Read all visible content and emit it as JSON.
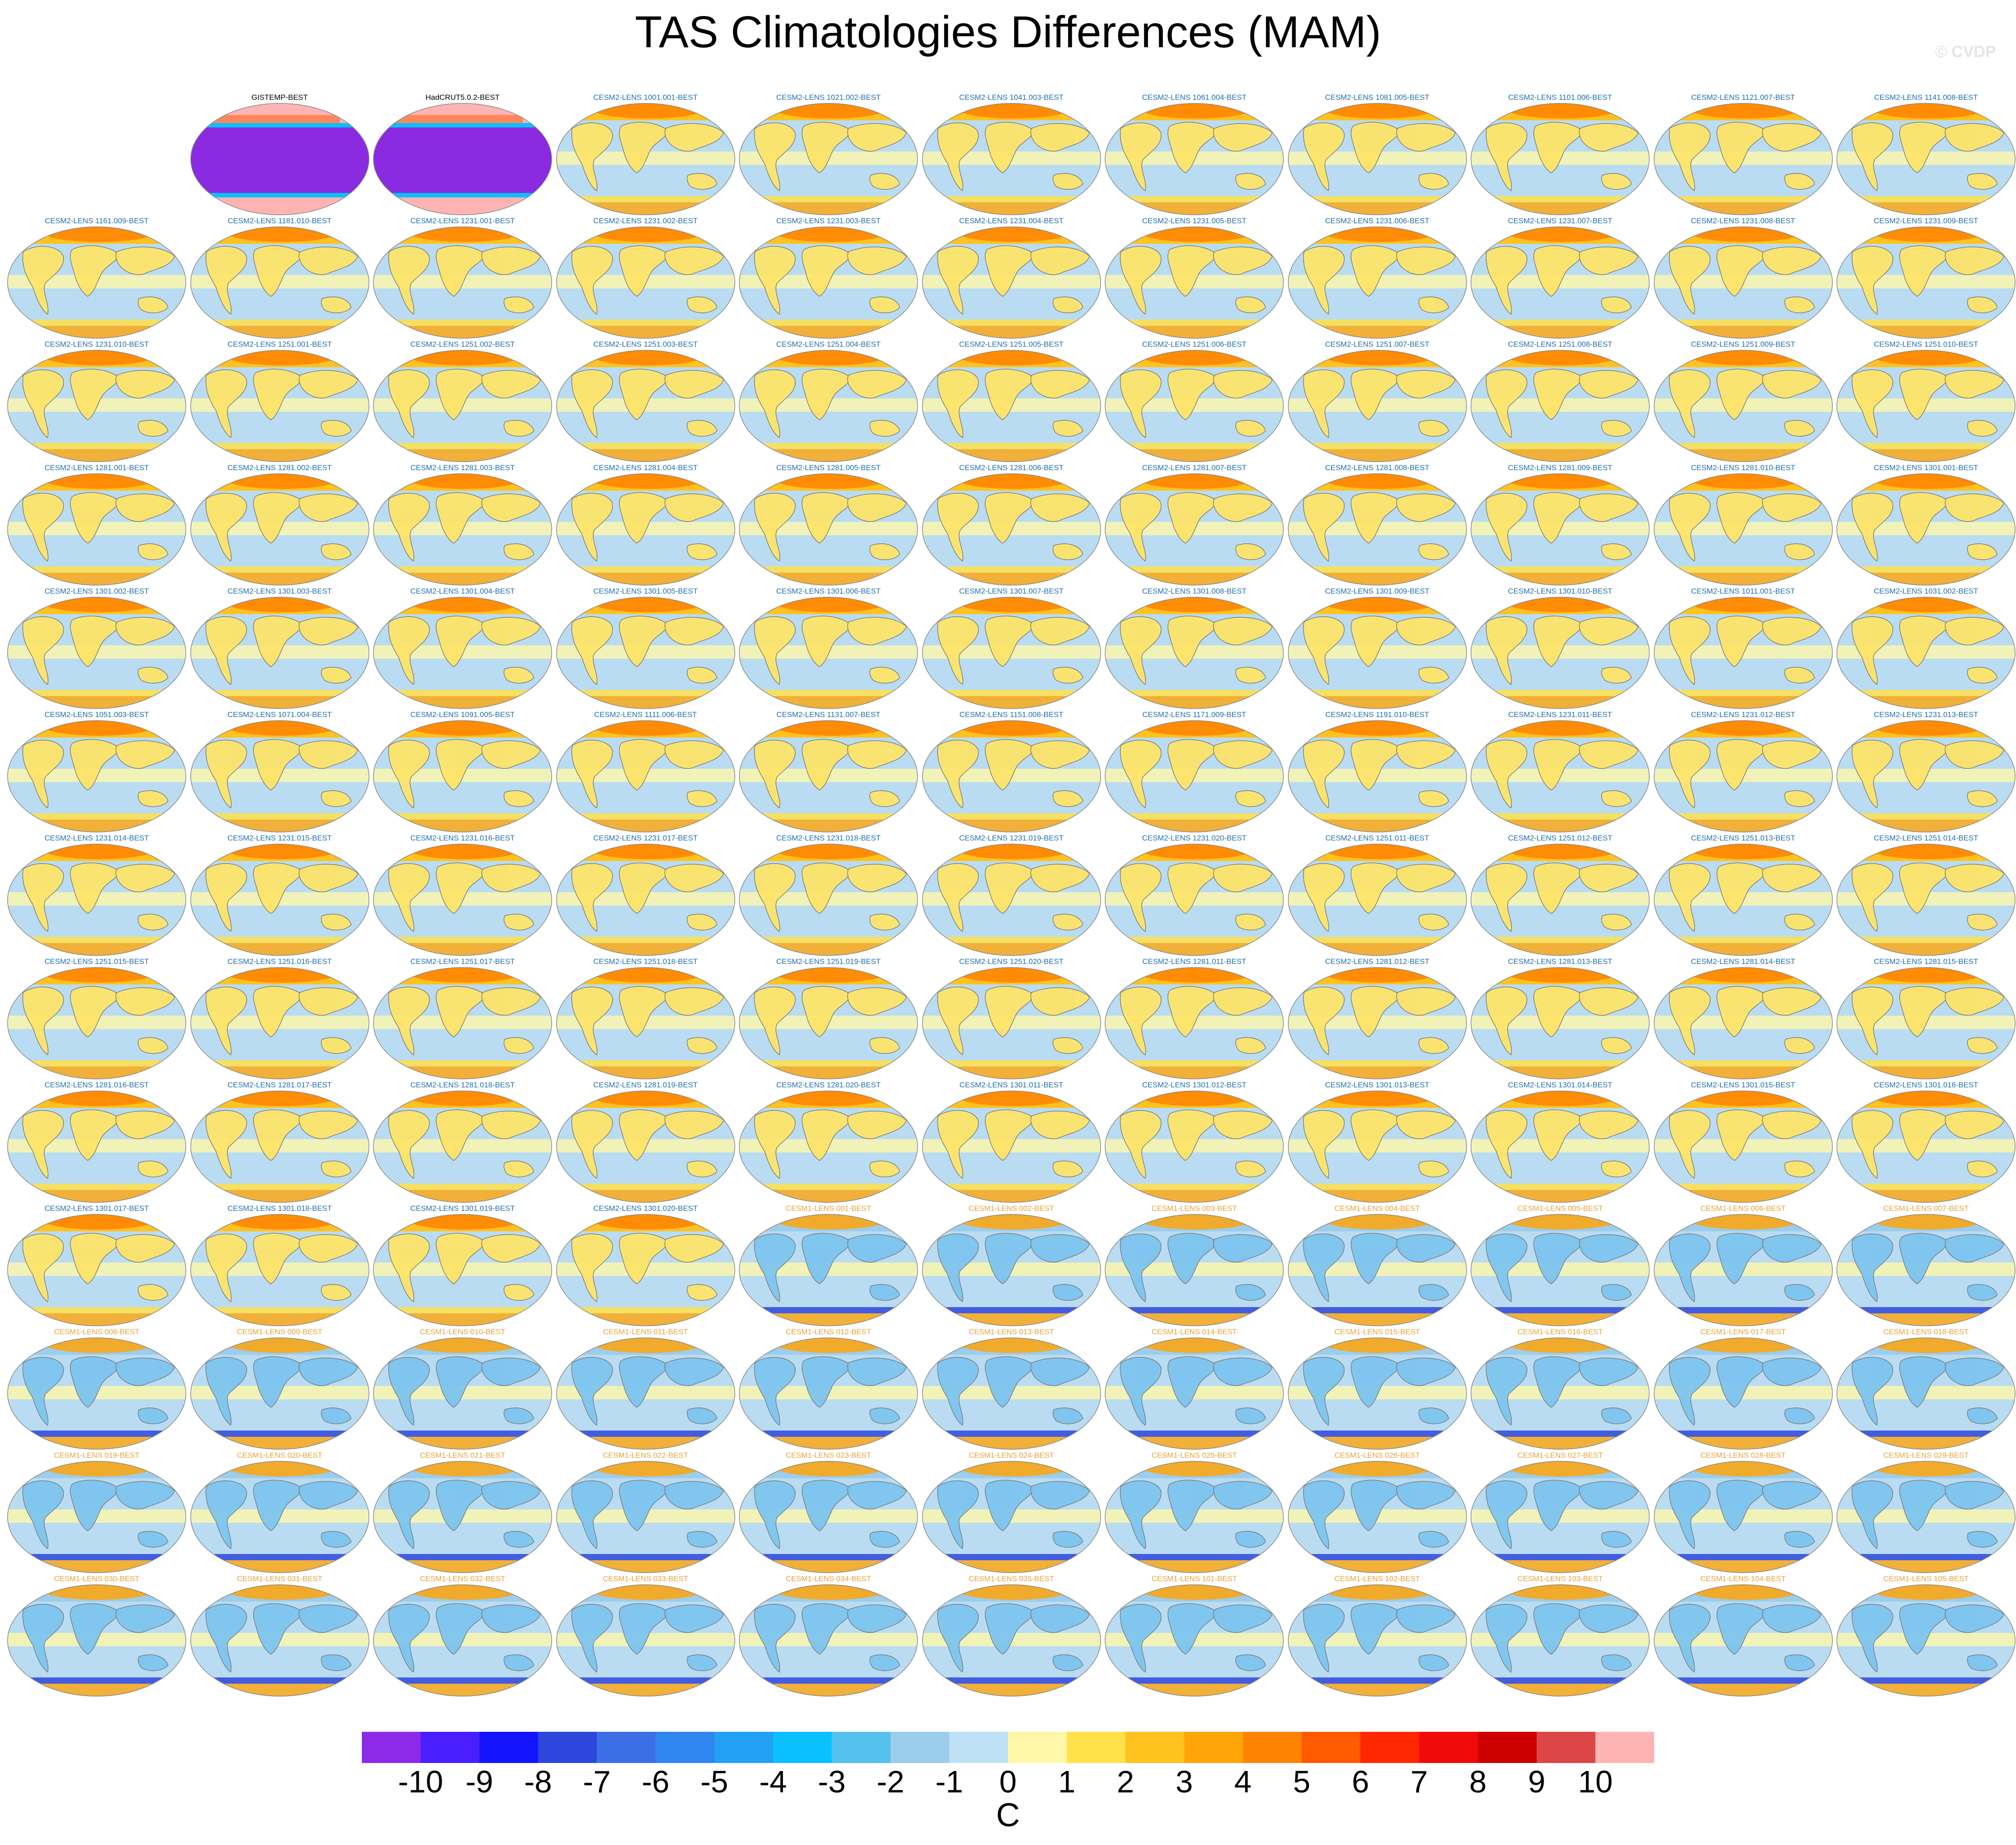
{
  "title": "TAS Climatologies Differences (MAM)",
  "watermark": "© CVDP",
  "colors": {
    "cesm2_title": "#1f6fb0",
    "cesm1_title": "#e8a23a",
    "obs_title": "#000000",
    "cesm2_land": "#fde46a",
    "cesm2_ocean": "#b9dcf2",
    "cesm1_land": "#7ec4ef",
    "cesm1_ocean": "#b9dcf2",
    "obs_fill": "#8a2be2"
  },
  "chart_data": {
    "type": "heatmap",
    "title": "TAS Climatologies Differences (MAM)",
    "projection": "robinson global maps",
    "colorbar": {
      "units": "C",
      "ticks": [
        "-10",
        "-9",
        "-8",
        "-7",
        "-6",
        "-5",
        "-4",
        "-3",
        "-2",
        "-1",
        "0",
        "1",
        "2",
        "3",
        "4",
        "5",
        "6",
        "7",
        "8",
        "9",
        "10"
      ],
      "colors": [
        "#8c2ae8",
        "#4b1eff",
        "#1414ff",
        "#2d46dc",
        "#3c6ee6",
        "#2f86f0",
        "#22a0f5",
        "#0ac0ff",
        "#55c2ee",
        "#9ccdec",
        "#bfe1f6",
        "#fff7a8",
        "#ffe14a",
        "#ffc21e",
        "#ffa50a",
        "#ff8200",
        "#ff5a00",
        "#ff2800",
        "#f00a0a",
        "#cd0000",
        "#dc4646",
        "#ffb4b4"
      ]
    },
    "panels": [
      "",
      "GISTEMP-BEST",
      "HadCRUT5.0.2-BEST",
      "CESM2-LENS 1001.001-BEST",
      "CESM2-LENS 1021.002-BEST",
      "CESM2-LENS 1041.003-BEST",
      "CESM2-LENS 1061.004-BEST",
      "CESM2-LENS 1081.005-BEST",
      "CESM2-LENS 1101.006-BEST",
      "CESM2-LENS 1121.007-BEST",
      "CESM2-LENS 1141.008-BEST",
      "CESM2-LENS 1161.009-BEST",
      "CESM2-LENS 1181.010-BEST",
      "CESM2-LENS 1231.001-BEST",
      "CESM2-LENS 1231.002-BEST",
      "CESM2-LENS 1231.003-BEST",
      "CESM2-LENS 1231.004-BEST",
      "CESM2-LENS 1231.005-BEST",
      "CESM2-LENS 1231.006-BEST",
      "CESM2-LENS 1231.007-BEST",
      "CESM2-LENS 1231.008-BEST",
      "CESM2-LENS 1231.009-BEST",
      "CESM2-LENS 1231.010-BEST",
      "CESM2-LENS 1251.001-BEST",
      "CESM2-LENS 1251.002-BEST",
      "CESM2-LENS 1251.003-BEST",
      "CESM2-LENS 1251.004-BEST",
      "CESM2-LENS 1251.005-BEST",
      "CESM2-LENS 1251.006-BEST",
      "CESM2-LENS 1251.007-BEST",
      "CESM2-LENS 1251.008-BEST",
      "CESM2-LENS 1251.009-BEST",
      "CESM2-LENS 1251.010-BEST",
      "CESM2-LENS 1281.001-BEST",
      "CESM2-LENS 1281.002-BEST",
      "CESM2-LENS 1281.003-BEST",
      "CESM2-LENS 1281.004-BEST",
      "CESM2-LENS 1281.005-BEST",
      "CESM2-LENS 1281.006-BEST",
      "CESM2-LENS 1281.007-BEST",
      "CESM2-LENS 1281.008-BEST",
      "CESM2-LENS 1281.009-BEST",
      "CESM2-LENS 1281.010-BEST",
      "CESM2-LENS 1301.001-BEST",
      "CESM2-LENS 1301.002-BEST",
      "CESM2-LENS 1301.003-BEST",
      "CESM2-LENS 1301.004-BEST",
      "CESM2-LENS 1301.005-BEST",
      "CESM2-LENS 1301.006-BEST",
      "CESM2-LENS 1301.007-BEST",
      "CESM2-LENS 1301.008-BEST",
      "CESM2-LENS 1301.009-BEST",
      "CESM2-LENS 1301.010-BEST",
      "CESM2-LENS 1011.001-BEST",
      "CESM2-LENS 1031.002-BEST",
      "CESM2-LENS 1051.003-BEST",
      "CESM2-LENS 1071.004-BEST",
      "CESM2-LENS 1091.005-BEST",
      "CESM2-LENS 1111.006-BEST",
      "CESM2-LENS 1131.007-BEST",
      "CESM2-LENS 1151.008-BEST",
      "CESM2-LENS 1171.009-BEST",
      "CESM2-LENS 1191.010-BEST",
      "CESM2-LENS 1231.011-BEST",
      "CESM2-LENS 1231.012-BEST",
      "CESM2-LENS 1231.013-BEST",
      "CESM2-LENS 1231.014-BEST",
      "CESM2-LENS 1231.015-BEST",
      "CESM2-LENS 1231.016-BEST",
      "CESM2-LENS 1231.017-BEST",
      "CESM2-LENS 1231.018-BEST",
      "CESM2-LENS 1231.019-BEST",
      "CESM2-LENS 1231.020-BEST",
      "CESM2-LENS 1251.011-BEST",
      "CESM2-LENS 1251.012-BEST",
      "CESM2-LENS 1251.013-BEST",
      "CESM2-LENS 1251.014-BEST",
      "CESM2-LENS 1251.015-BEST",
      "CESM2-LENS 1251.016-BEST",
      "CESM2-LENS 1251.017-BEST",
      "CESM2-LENS 1251.018-BEST",
      "CESM2-LENS 1251.019-BEST",
      "CESM2-LENS 1251.020-BEST",
      "CESM2-LENS 1281.011-BEST",
      "CESM2-LENS 1281.012-BEST",
      "CESM2-LENS 1281.013-BEST",
      "CESM2-LENS 1281.014-BEST",
      "CESM2-LENS 1281.015-BEST",
      "CESM2-LENS 1281.016-BEST",
      "CESM2-LENS 1281.017-BEST",
      "CESM2-LENS 1281.018-BEST",
      "CESM2-LENS 1281.019-BEST",
      "CESM2-LENS 1281.020-BEST",
      "CESM2-LENS 1301.011-BEST",
      "CESM2-LENS 1301.012-BEST",
      "CESM2-LENS 1301.013-BEST",
      "CESM2-LENS 1301.014-BEST",
      "CESM2-LENS 1301.015-BEST",
      "CESM2-LENS 1301.016-BEST",
      "CESM2-LENS 1301.017-BEST",
      "CESM2-LENS 1301.018-BEST",
      "CESM2-LENS 1301.019-BEST",
      "CESM2-LENS 1301.020-BEST",
      "CESM1-LENS 001-BEST",
      "CESM1-LENS 002-BEST",
      "CESM1-LENS 003-BEST",
      "CESM1-LENS 004-BEST",
      "CESM1-LENS 005-BEST",
      "CESM1-LENS 006-BEST",
      "CESM1-LENS 007-BEST",
      "CESM1-LENS 008-BEST",
      "CESM1-LENS 009-BEST",
      "CESM1-LENS 010-BEST",
      "CESM1-LENS 011-BEST",
      "CESM1-LENS 012-BEST",
      "CESM1-LENS 013-BEST",
      "CESM1-LENS 014-BEST",
      "CESM1-LENS 015-BEST",
      "CESM1-LENS 016-BEST",
      "CESM1-LENS 017-BEST",
      "CESM1-LENS 018-BEST",
      "CESM1-LENS 019-BEST",
      "CESM1-LENS 020-BEST",
      "CESM1-LENS 021-BEST",
      "CESM1-LENS 022-BEST",
      "CESM1-LENS 023-BEST",
      "CESM1-LENS 024-BEST",
      "CESM1-LENS 025-BEST",
      "CESM1-LENS 026-BEST",
      "CESM1-LENS 027-BEST",
      "CESM1-LENS 028-BEST",
      "CESM1-LENS 029-BEST",
      "CESM1-LENS 030-BEST",
      "CESM1-LENS 031-BEST",
      "CESM1-LENS 032-BEST",
      "CESM1-LENS 033-BEST",
      "CESM1-LENS 034-BEST",
      "CESM1-LENS 035-BEST",
      "CESM1-LENS 101-BEST",
      "CESM1-LENS 102-BEST",
      "CESM1-LENS 103-BEST",
      "CESM1-LENS 104-BEST",
      "CESM1-LENS 105-BEST"
    ]
  }
}
